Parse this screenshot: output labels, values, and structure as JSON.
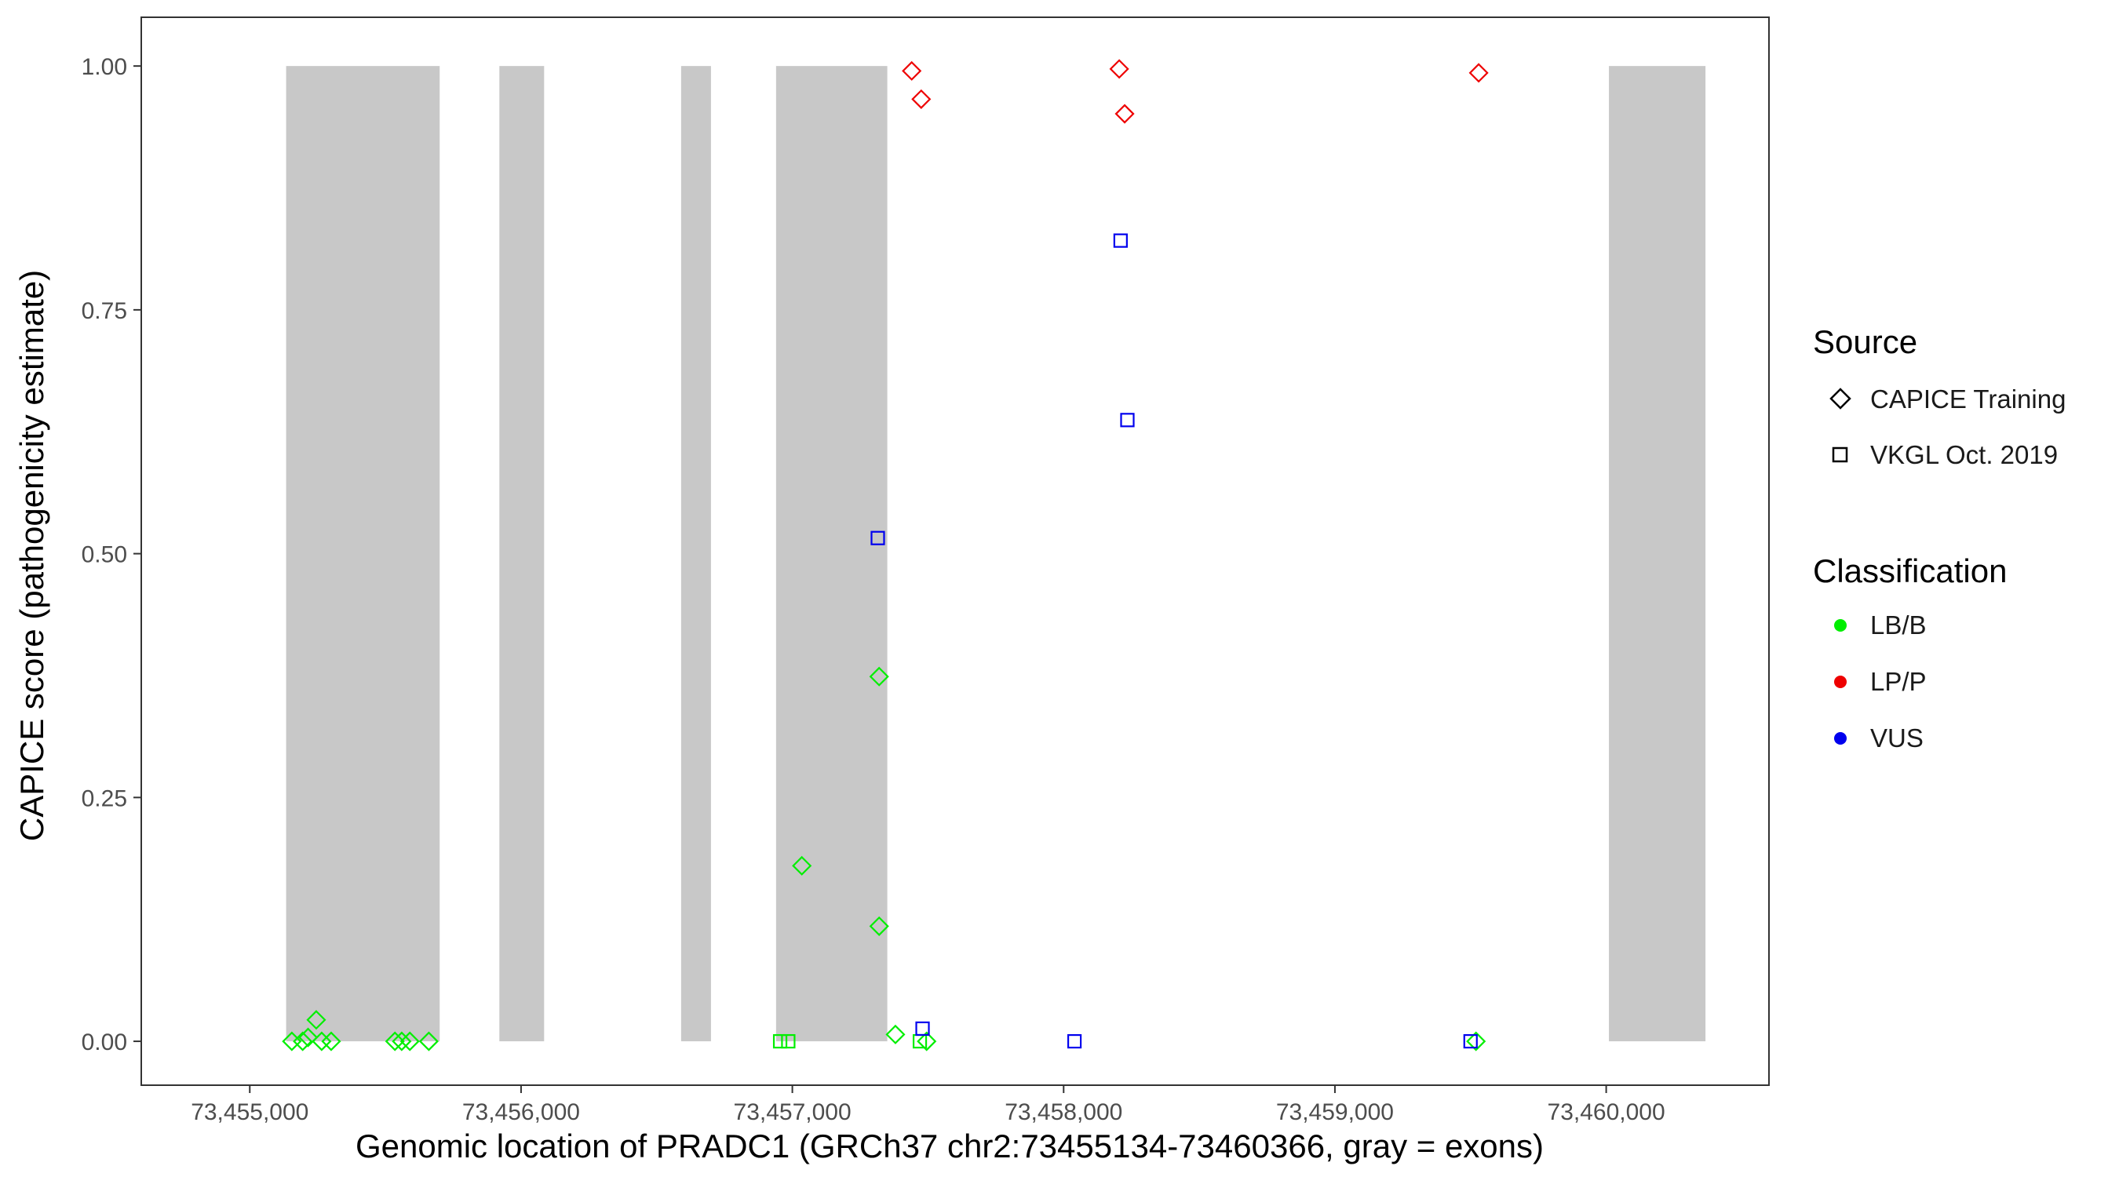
{
  "chart_data": {
    "type": "scatter",
    "xlabel": "Genomic location of PRADC1 (GRCh37 chr2:73455134-73460366, gray = exons)",
    "ylabel": "CAPICE score (pathogenicity estimate)",
    "xlim": [
      73454600,
      73460600
    ],
    "ylim": [
      -0.045,
      1.05
    ],
    "x_ticks": [
      73455000,
      73456000,
      73457000,
      73458000,
      73459000,
      73460000
    ],
    "x_tick_labels": [
      "73,455,000",
      "73,456,000",
      "73,457,000",
      "73,458,000",
      "73,459,000",
      "73,460,000"
    ],
    "y_ticks": [
      0,
      0.25,
      0.5,
      0.75,
      1
    ],
    "y_tick_labels": [
      "0.00",
      "0.25",
      "0.50",
      "0.75",
      "1.00"
    ],
    "grid": false,
    "exon_color": "#c8c8c8",
    "exons": [
      [
        73455134,
        73455700
      ],
      [
        73455920,
        73456085
      ],
      [
        73456590,
        73456700
      ],
      [
        73456940,
        73457350
      ],
      [
        73460010,
        73460366
      ]
    ],
    "legend": {
      "position": "right",
      "source": {
        "title": "Source",
        "items": [
          {
            "label": "CAPICE Training",
            "shape": "diamond"
          },
          {
            "label": "VKGL Oct. 2019",
            "shape": "square"
          }
        ]
      },
      "classification": {
        "title": "Classification",
        "items": [
          {
            "label": "LB/B",
            "color": "#00ee00"
          },
          {
            "label": "LP/P",
            "color": "#ee0000"
          },
          {
            "label": "VUS",
            "color": "#0000ee"
          }
        ]
      }
    },
    "points": [
      {
        "x": 73455155,
        "y": 0.0,
        "shape": "diamond",
        "class": "LB/B"
      },
      {
        "x": 73455195,
        "y": 0.0,
        "shape": "diamond",
        "class": "LB/B"
      },
      {
        "x": 73455215,
        "y": 0.004,
        "shape": "diamond",
        "class": "LB/B"
      },
      {
        "x": 73455245,
        "y": 0.022,
        "shape": "diamond",
        "class": "LB/B"
      },
      {
        "x": 73455265,
        "y": 0.0,
        "shape": "diamond",
        "class": "LB/B"
      },
      {
        "x": 73455300,
        "y": 0.0,
        "shape": "diamond",
        "class": "LB/B"
      },
      {
        "x": 73455535,
        "y": 0.0,
        "shape": "diamond",
        "class": "LB/B"
      },
      {
        "x": 73455560,
        "y": 0.0,
        "shape": "diamond",
        "class": "LB/B"
      },
      {
        "x": 73455590,
        "y": 0.0,
        "shape": "diamond",
        "class": "LB/B"
      },
      {
        "x": 73455660,
        "y": 0.0,
        "shape": "diamond",
        "class": "LB/B"
      },
      {
        "x": 73456955,
        "y": 0.0,
        "shape": "square",
        "class": "LB/B"
      },
      {
        "x": 73456985,
        "y": 0.0,
        "shape": "square",
        "class": "LB/B"
      },
      {
        "x": 73457035,
        "y": 0.18,
        "shape": "diamond",
        "class": "LB/B"
      },
      {
        "x": 73457320,
        "y": 0.374,
        "shape": "diamond",
        "class": "LB/B"
      },
      {
        "x": 73457320,
        "y": 0.118,
        "shape": "diamond",
        "class": "LB/B"
      },
      {
        "x": 73457380,
        "y": 0.007,
        "shape": "diamond",
        "class": "LB/B"
      },
      {
        "x": 73457470,
        "y": 0.0,
        "shape": "square",
        "class": "LB/B"
      },
      {
        "x": 73457495,
        "y": 0.0,
        "shape": "diamond",
        "class": "LB/B"
      },
      {
        "x": 73459520,
        "y": 0.0,
        "shape": "diamond",
        "class": "LB/B"
      },
      {
        "x": 73457315,
        "y": 0.516,
        "shape": "square",
        "class": "VUS"
      },
      {
        "x": 73457480,
        "y": 0.013,
        "shape": "square",
        "class": "VUS"
      },
      {
        "x": 73458040,
        "y": 0.0,
        "shape": "square",
        "class": "VUS"
      },
      {
        "x": 73458210,
        "y": 0.821,
        "shape": "square",
        "class": "VUS"
      },
      {
        "x": 73458235,
        "y": 0.637,
        "shape": "square",
        "class": "VUS"
      },
      {
        "x": 73459500,
        "y": 0.0,
        "shape": "square",
        "class": "VUS"
      },
      {
        "x": 73457440,
        "y": 0.995,
        "shape": "diamond",
        "class": "LP/P"
      },
      {
        "x": 73457475,
        "y": 0.966,
        "shape": "diamond",
        "class": "LP/P"
      },
      {
        "x": 73458205,
        "y": 0.997,
        "shape": "diamond",
        "class": "LP/P"
      },
      {
        "x": 73458225,
        "y": 0.951,
        "shape": "diamond",
        "class": "LP/P"
      },
      {
        "x": 73459530,
        "y": 0.993,
        "shape": "diamond",
        "class": "LP/P"
      }
    ]
  }
}
